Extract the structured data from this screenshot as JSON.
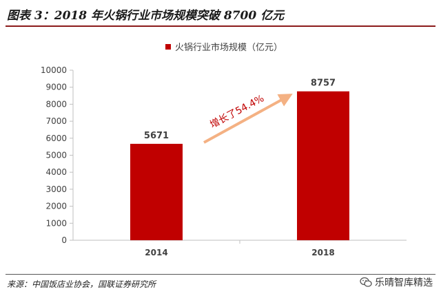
{
  "header": {
    "title": "图表 3：2018 年火锅行业市场规模突破 8700 亿元"
  },
  "footer": {
    "source": "来源：中国饭店业协会，国联证券研究所",
    "watermark_text": "乐晴智库精选",
    "watermark_icon": "wechat-icon"
  },
  "chart_data": {
    "type": "bar",
    "categories": [
      "2014",
      "2018"
    ],
    "series": [
      {
        "name": "火锅行业市场规模（亿元）",
        "values": [
          5671,
          8757
        ],
        "color": "#c00000"
      }
    ],
    "data_labels": [
      "5671",
      "8757"
    ],
    "ylim": [
      0,
      10000
    ],
    "yticks": [
      0,
      1000,
      2000,
      3000,
      4000,
      5000,
      6000,
      7000,
      8000,
      9000,
      10000
    ],
    "grid": false,
    "legend_position": "top-center",
    "annotation": {
      "text": "增长了54.4%",
      "arrow_color": "#f4b183",
      "text_color": "#c00000"
    }
  }
}
